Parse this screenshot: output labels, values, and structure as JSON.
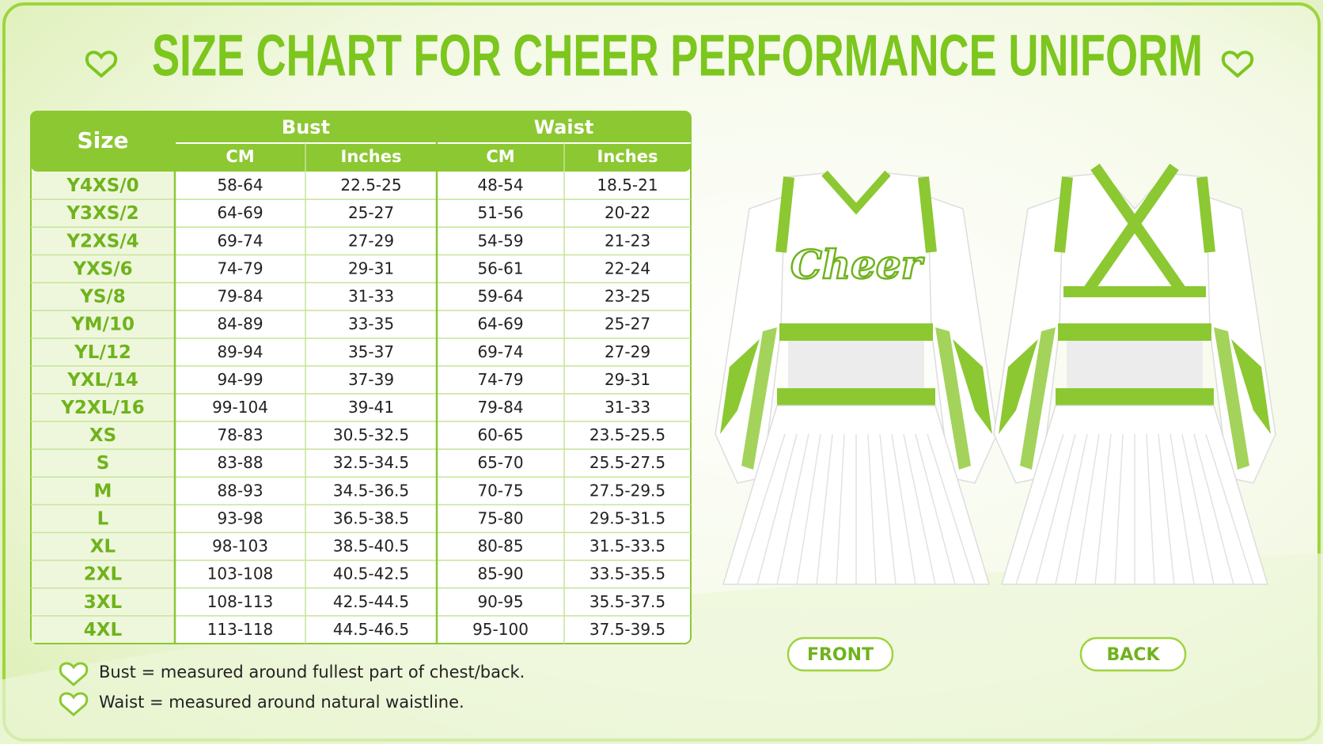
{
  "title": "SIZE CHART FOR CHEER PERFORMANCE UNIFORM",
  "table": {
    "header": {
      "size": "Size",
      "groups": [
        "Bust",
        "Waist"
      ],
      "sub": [
        "CM",
        "Inches",
        "CM",
        "Inches"
      ]
    },
    "rows": [
      [
        "Y4XS/0",
        "58-64",
        "22.5-25",
        "48-54",
        "18.5-21"
      ],
      [
        "Y3XS/2",
        "64-69",
        "25-27",
        "51-56",
        "20-22"
      ],
      [
        "Y2XS/4",
        "69-74",
        "27-29",
        "54-59",
        "21-23"
      ],
      [
        "YXS/6",
        "74-79",
        "29-31",
        "56-61",
        "22-24"
      ],
      [
        "YS/8",
        "79-84",
        "31-33",
        "59-64",
        "23-25"
      ],
      [
        "YM/10",
        "84-89",
        "33-35",
        "64-69",
        "25-27"
      ],
      [
        "YL/12",
        "89-94",
        "35-37",
        "69-74",
        "27-29"
      ],
      [
        "YXL/14",
        "94-99",
        "37-39",
        "74-79",
        "29-31"
      ],
      [
        "Y2XL/16",
        "99-104",
        "39-41",
        "79-84",
        "31-33"
      ],
      [
        "XS",
        "78-83",
        "30.5-32.5",
        "60-65",
        "23.5-25.5"
      ],
      [
        "S",
        "83-88",
        "32.5-34.5",
        "65-70",
        "25.5-27.5"
      ],
      [
        "M",
        "88-93",
        "34.5-36.5",
        "70-75",
        "27.5-29.5"
      ],
      [
        "L",
        "93-98",
        "36.5-38.5",
        "75-80",
        "29.5-31.5"
      ],
      [
        "XL",
        "98-103",
        "38.5-40.5",
        "80-85",
        "31.5-33.5"
      ],
      [
        "2XL",
        "103-108",
        "40.5-42.5",
        "85-90",
        "33.5-35.5"
      ],
      [
        "3XL",
        "108-113",
        "42.5-44.5",
        "90-95",
        "35.5-37.5"
      ],
      [
        "4XL",
        "113-118",
        "44.5-46.5",
        "95-100",
        "37.5-39.5"
      ]
    ]
  },
  "notes": [
    "Bust = measured around fullest part of chest/back.",
    "Waist = measured around natural waistline."
  ],
  "front_logo": "Cheer",
  "labels": {
    "front": "FRONT",
    "back": "BACK"
  }
}
